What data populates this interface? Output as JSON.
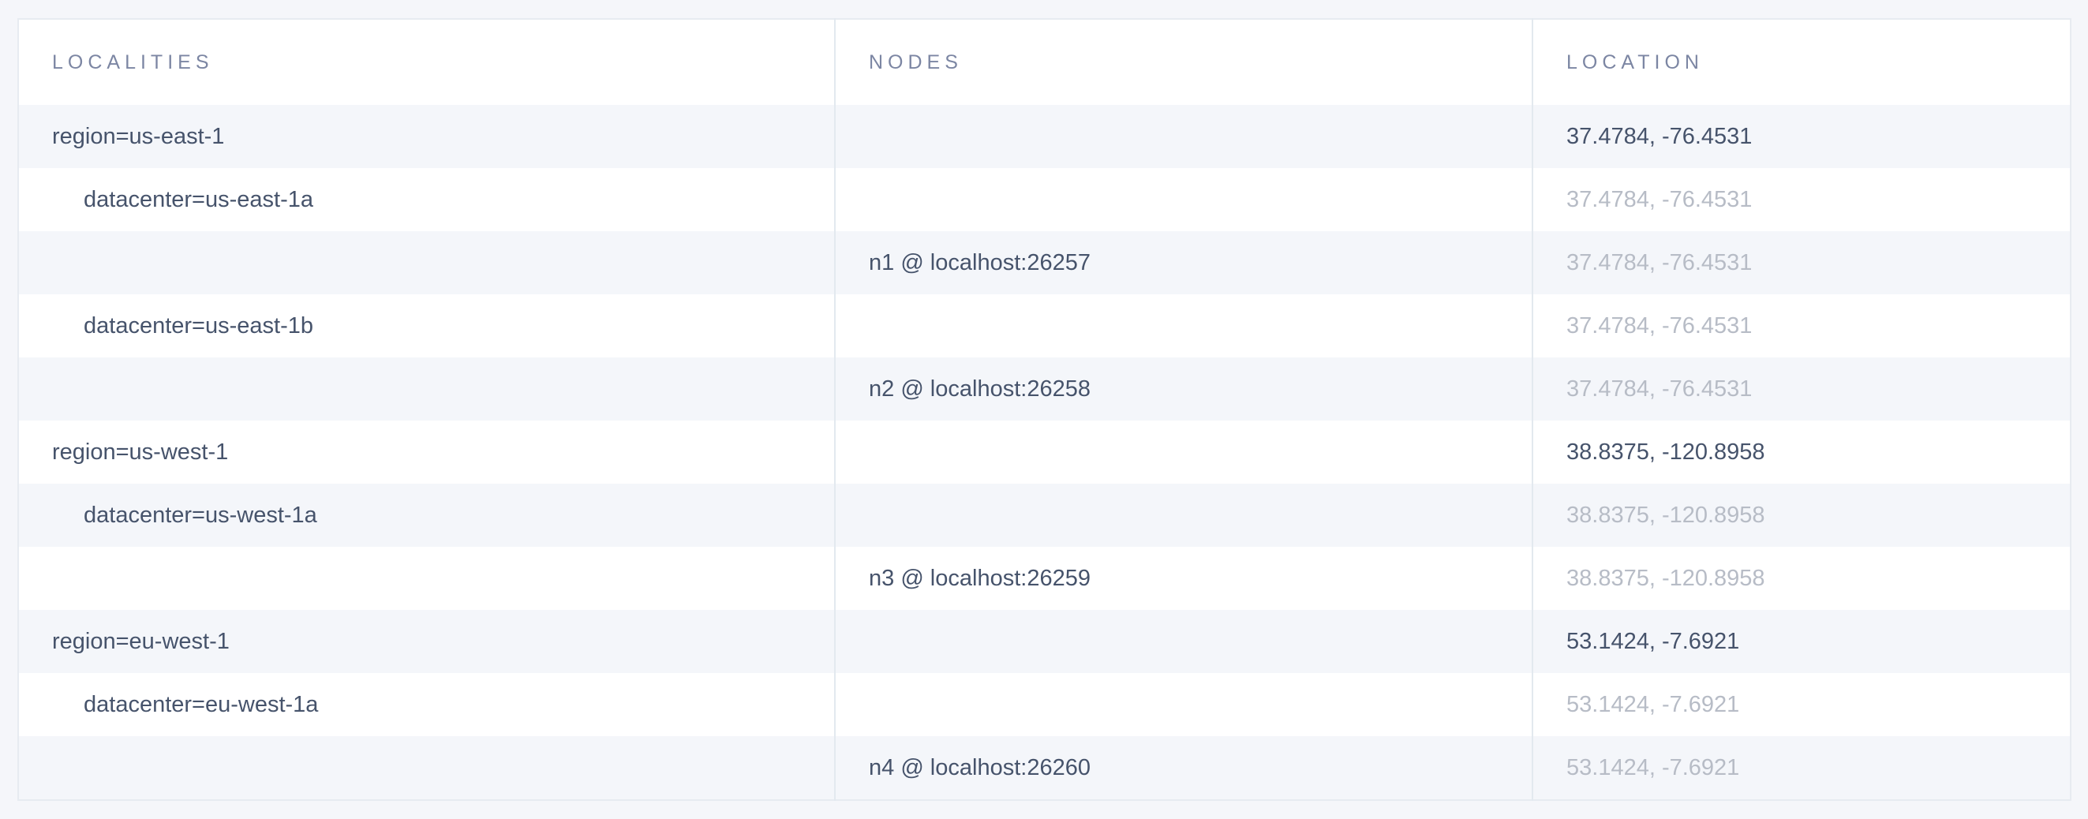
{
  "table": {
    "columns": [
      {
        "label": "Localities"
      },
      {
        "label": "Nodes"
      },
      {
        "label": "Location"
      }
    ],
    "rows": [
      {
        "locality": "region=us-east-1",
        "nodes": "",
        "location": "37.4784, -76.4531",
        "location_muted": false
      },
      {
        "locality": "datacenter=us-east-1a",
        "nodes": "",
        "location": "37.4784, -76.4531",
        "location_muted": true
      },
      {
        "locality": "",
        "nodes": "n1 @ localhost:26257",
        "location": "37.4784, -76.4531",
        "location_muted": true
      },
      {
        "locality": "datacenter=us-east-1b",
        "nodes": "",
        "location": "37.4784, -76.4531",
        "location_muted": true
      },
      {
        "locality": "",
        "nodes": "n2 @ localhost:26258",
        "location": "37.4784, -76.4531",
        "location_muted": true
      },
      {
        "locality": "region=us-west-1",
        "nodes": "",
        "location": "38.8375, -120.8958",
        "location_muted": false
      },
      {
        "locality": "datacenter=us-west-1a",
        "nodes": "",
        "location": "38.8375, -120.8958",
        "location_muted": true
      },
      {
        "locality": "",
        "nodes": "n3 @ localhost:26259",
        "location": "38.8375, -120.8958",
        "location_muted": true
      },
      {
        "locality": "region=eu-west-1",
        "nodes": "",
        "location": "53.1424, -7.6921",
        "location_muted": false
      },
      {
        "locality": "datacenter=eu-west-1a",
        "nodes": "",
        "location": "53.1424, -7.6921",
        "location_muted": true
      },
      {
        "locality": "",
        "nodes": "n4 @ localhost:26260",
        "location": "53.1424, -7.6921",
        "location_muted": true
      }
    ],
    "colors": {
      "page_background": "#f5f6fa",
      "stripe_row_background": "#f4f6fa",
      "header_text": "#7c86a3",
      "body_text": "#46536b",
      "muted_text": "#b7bcc6",
      "border": "#e3e9ef"
    }
  }
}
